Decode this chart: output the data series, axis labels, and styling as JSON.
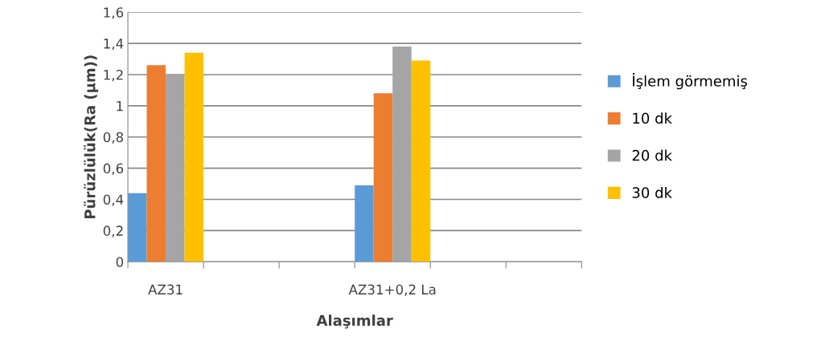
{
  "chart_data": {
    "type": "bar",
    "xlabel": "Alaşımlar",
    "ylabel": "Pürüzlülük(Ra (µm))",
    "categories": [
      "AZ31",
      null,
      null,
      "AZ31+0,2 La",
      null,
      null
    ],
    "series": [
      {
        "name": "İşlem görmemiş",
        "color": "#5b9bd5",
        "values": [
          0.44,
          null,
          null,
          0.49,
          null,
          null
        ]
      },
      {
        "name": "10 dk",
        "color": "#ed7d31",
        "values": [
          1.26,
          null,
          null,
          1.08,
          null,
          null
        ]
      },
      {
        "name": "20 dk",
        "color": "#a5a5a5",
        "values": [
          1.2,
          null,
          null,
          1.38,
          null,
          null
        ]
      },
      {
        "name": "30 dk",
        "color": "#ffc000",
        "values": [
          1.34,
          null,
          null,
          1.29,
          null,
          null
        ]
      }
    ],
    "ylim": [
      0,
      1.6
    ],
    "yticks": [
      {
        "value": 0,
        "label": "0"
      },
      {
        "value": 0.2,
        "label": "0,2"
      },
      {
        "value": 0.4,
        "label": "0,4"
      },
      {
        "value": 0.6,
        "label": "0,6"
      },
      {
        "value": 0.8,
        "label": "0,8"
      },
      {
        "value": 1,
        "label": "1"
      },
      {
        "value": 1.2,
        "label": "1,2"
      },
      {
        "value": 1.4,
        "label": "1,4"
      },
      {
        "value": 1.6,
        "label": "1,6"
      }
    ],
    "grid": "y",
    "legend": "right"
  }
}
